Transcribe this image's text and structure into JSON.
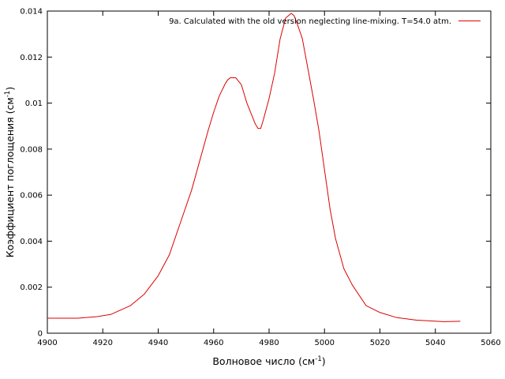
{
  "chart_data": {
    "type": "line",
    "xlabel": "Волновое число (см",
    "xlabel_sup": "-1",
    "xlabel_end": ")",
    "ylabel": "Коэффициент поглощения (см",
    "ylabel_sup": "-1",
    "ylabel_end": ")",
    "xlim": [
      4900,
      5060
    ],
    "ylim": [
      0,
      0.014
    ],
    "xticks": [
      4900,
      4920,
      4940,
      4960,
      4980,
      5000,
      5020,
      5040,
      5060
    ],
    "yticks": [
      0,
      0.002,
      0.004,
      0.006,
      0.008,
      0.01,
      0.012,
      0.014
    ],
    "xtick_labels": [
      "4900",
      "4920",
      "4940",
      "4960",
      "4980",
      "5000",
      "5020",
      "5040",
      "5060"
    ],
    "ytick_labels": [
      "0",
      "0.002",
      "0.004",
      "0.006",
      "0.008",
      "0.01",
      "0.012",
      "0.014"
    ],
    "grid": false,
    "legend_position": "top-right",
    "series": [
      {
        "name": "9a. Calculated with the old version neglecting line-mixing. T=54.0 atm.",
        "color": "#dd0000",
        "x": [
          4900,
          4911,
          4918,
          4923,
          4930,
          4935,
          4940,
          4944,
          4948,
          4952,
          4955,
          4958,
          4960,
          4962,
          4964,
          4965,
          4966,
          4968,
          4970,
          4972,
          4974,
          4975,
          4976,
          4977,
          4978,
          4980,
          4982,
          4984,
          4986,
          4988,
          4989,
          4990,
          4992,
          4994,
          4996,
          4998,
          5000,
          5002,
          5004,
          5007,
          5010,
          5015,
          5020,
          5026,
          5033,
          5043,
          5049
        ],
        "y": [
          0.00065,
          0.00065,
          0.00072,
          0.00082,
          0.0012,
          0.0017,
          0.0025,
          0.0034,
          0.0048,
          0.0062,
          0.0075,
          0.0088,
          0.0096,
          0.0103,
          0.0108,
          0.011,
          0.0111,
          0.0111,
          0.0108,
          0.01,
          0.0094,
          0.0091,
          0.0089,
          0.0089,
          0.0093,
          0.0102,
          0.0113,
          0.0128,
          0.0137,
          0.0139,
          0.0138,
          0.0135,
          0.0128,
          0.0115,
          0.0102,
          0.0088,
          0.0071,
          0.0054,
          0.0041,
          0.0028,
          0.0021,
          0.0012,
          0.0009,
          0.00068,
          0.00057,
          0.0005,
          0.00052
        ]
      }
    ]
  }
}
